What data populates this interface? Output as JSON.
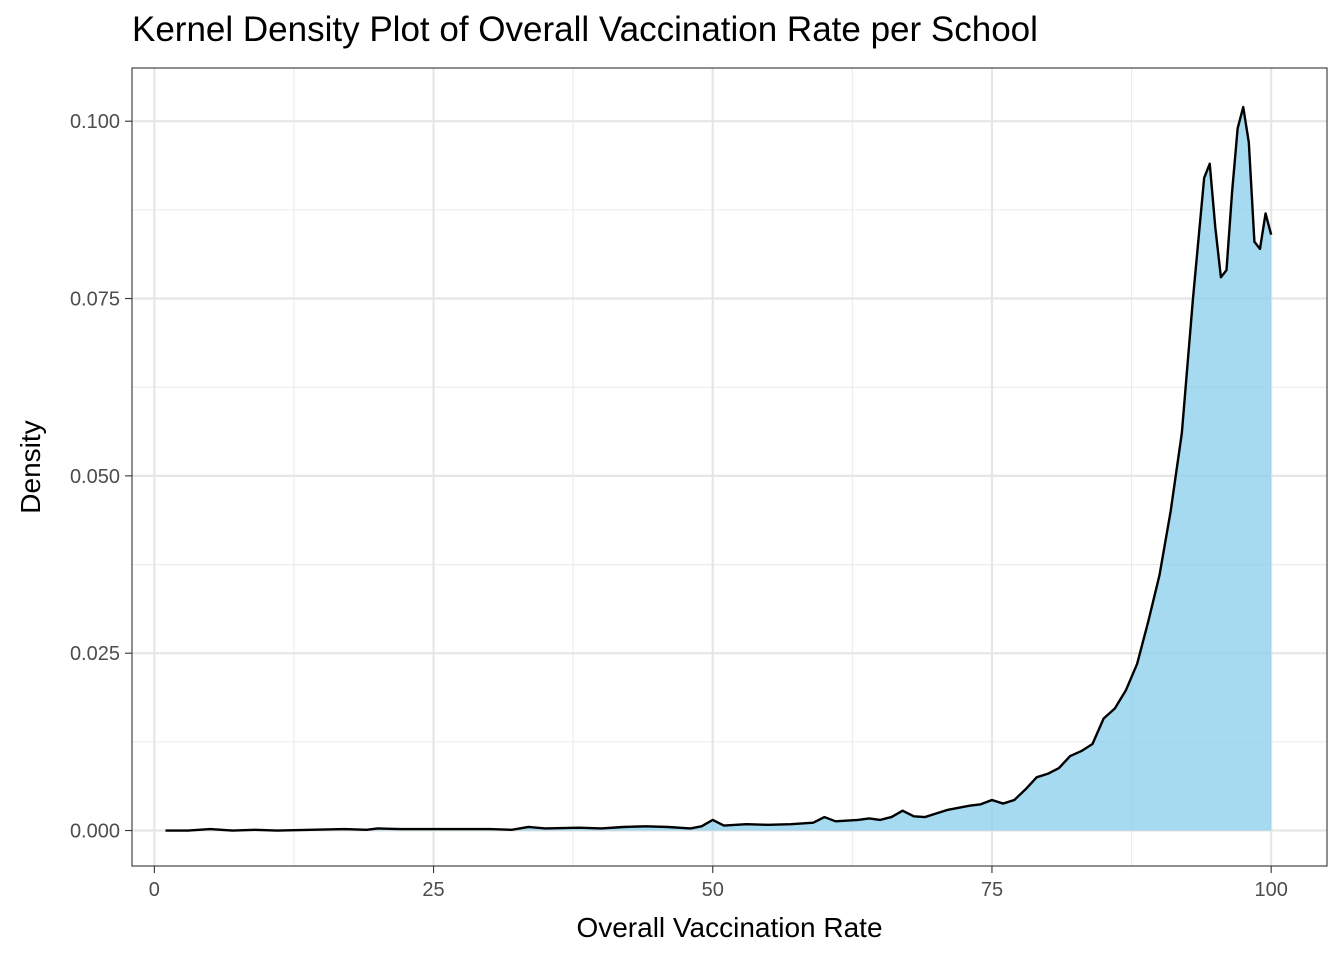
{
  "chart_data": {
    "type": "area",
    "title": "Kernel Density Plot of Overall Vaccination Rate per School",
    "xlabel": "Overall Vaccination Rate",
    "ylabel": "Density",
    "xlim": [
      -2,
      105
    ],
    "ylim": [
      -0.005,
      0.1075
    ],
    "x_ticks": [
      0,
      25,
      50,
      75,
      100
    ],
    "x_tick_labels": [
      "0",
      "25",
      "50",
      "75",
      "100"
    ],
    "y_ticks": [
      0,
      0.025,
      0.05,
      0.075,
      0.1
    ],
    "y_tick_labels": [
      "0.000",
      "0.025",
      "0.050",
      "0.075",
      "0.100"
    ],
    "grid": true,
    "legend": "none",
    "fill_color": "#87ceeb",
    "line_color": "#000000",
    "series": [
      {
        "x": [
          1,
          3,
          5,
          7,
          9,
          11,
          14,
          17,
          19,
          20,
          22,
          25,
          28,
          30,
          32,
          33.5,
          35,
          38,
          40,
          42,
          44,
          46,
          48,
          49,
          50,
          51,
          53,
          55,
          57,
          59,
          60,
          61,
          63,
          64,
          65,
          66,
          67,
          68,
          69,
          70,
          71,
          72,
          73,
          74,
          75,
          76,
          77,
          78,
          79,
          80,
          81,
          82,
          83,
          84,
          85,
          86,
          87,
          88,
          89,
          90,
          91,
          92,
          93,
          94,
          94.5,
          95,
          95.5,
          96,
          96.5,
          97,
          97.5,
          98,
          98.5,
          99,
          99.5,
          100
        ],
        "y": [
          0.0,
          0.0,
          0.0002,
          0.0,
          0.0001,
          0.0,
          0.0001,
          0.0002,
          0.0001,
          0.0003,
          0.0002,
          0.0002,
          0.0002,
          0.0002,
          0.0001,
          0.0005,
          0.0003,
          0.0004,
          0.0003,
          0.0005,
          0.0006,
          0.0005,
          0.0003,
          0.0006,
          0.0015,
          0.0007,
          0.0009,
          0.0008,
          0.0009,
          0.0011,
          0.0019,
          0.0013,
          0.0015,
          0.0017,
          0.0015,
          0.0019,
          0.0028,
          0.002,
          0.0019,
          0.0024,
          0.0029,
          0.0032,
          0.0035,
          0.0037,
          0.0043,
          0.0038,
          0.0043,
          0.0058,
          0.0075,
          0.008,
          0.0088,
          0.0105,
          0.0112,
          0.0122,
          0.0158,
          0.0172,
          0.0198,
          0.0235,
          0.0295,
          0.036,
          0.045,
          0.056,
          0.075,
          0.092,
          0.094,
          0.085,
          0.078,
          0.079,
          0.09,
          0.099,
          0.102,
          0.097,
          0.083,
          0.082,
          0.087,
          0.084
        ]
      }
    ]
  }
}
